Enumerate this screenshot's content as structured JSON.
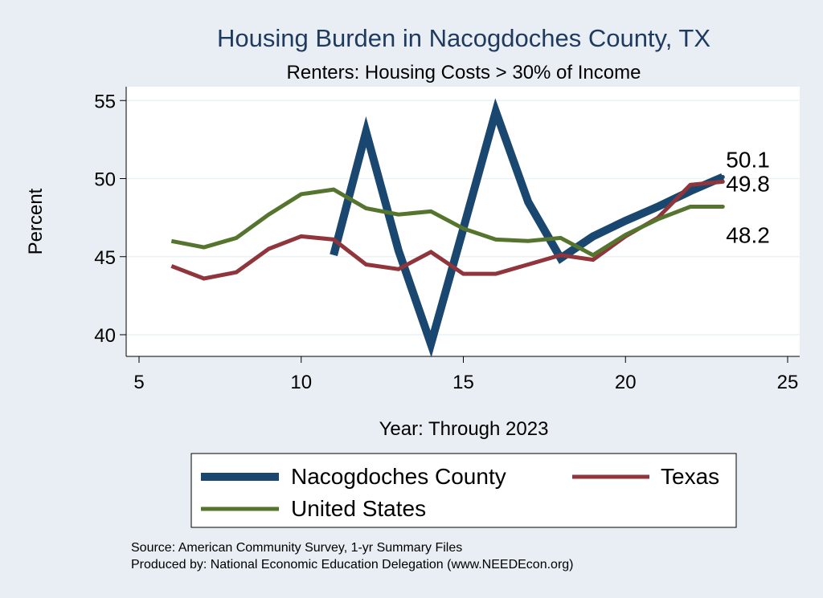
{
  "chart_data": {
    "type": "line",
    "title": "Housing Burden in Nacogdoches County, TX",
    "subtitle": "Renters: Housing Costs > 30% of Income",
    "xlabel": "Year: Through 2023",
    "ylabel": "Percent",
    "xlim": [
      5,
      25
    ],
    "ylim": [
      38.6,
      55.8
    ],
    "xticks": [
      5,
      10,
      15,
      20,
      25
    ],
    "yticks": [
      40,
      45,
      50,
      55
    ],
    "grid": true,
    "legend_position": "bottom",
    "series": [
      {
        "name": "Nacogdoches County",
        "color": "#1a476f",
        "x": [
          11,
          12,
          13,
          14,
          15,
          16,
          17,
          18,
          19,
          20,
          21,
          22,
          23
        ],
        "y": [
          45.1,
          53.0,
          45.4,
          39.4,
          46.8,
          54.3,
          48.5,
          44.9,
          46.3,
          47.3,
          48.2,
          49.2,
          50.1
        ],
        "end_label": "50.1"
      },
      {
        "name": "Texas",
        "color": "#90353b",
        "x": [
          6,
          7,
          8,
          9,
          10,
          11,
          12,
          13,
          14,
          15,
          16,
          17,
          18,
          19,
          20,
          21,
          22,
          23
        ],
        "y": [
          44.4,
          43.6,
          44.0,
          45.5,
          46.3,
          46.1,
          44.5,
          44.2,
          45.3,
          43.9,
          43.9,
          44.5,
          45.1,
          44.8,
          46.3,
          47.5,
          49.6,
          49.8
        ],
        "end_label": "49.8"
      },
      {
        "name": "United States",
        "color": "#55752f",
        "x": [
          6,
          7,
          8,
          9,
          10,
          11,
          12,
          13,
          14,
          15,
          16,
          17,
          18,
          19,
          20,
          21,
          22,
          23
        ],
        "y": [
          46.0,
          45.6,
          46.2,
          47.7,
          49.0,
          49.3,
          48.1,
          47.7,
          47.9,
          46.8,
          46.1,
          46.0,
          46.2,
          45.1,
          46.4,
          47.4,
          48.2,
          48.2
        ],
        "end_label": "48.2"
      }
    ],
    "notes": [
      "Source: American Community Survey, 1-yr Summary Files",
      "Produced by: National Economic Education Delegation (www.NEEDEcon.org)"
    ]
  }
}
